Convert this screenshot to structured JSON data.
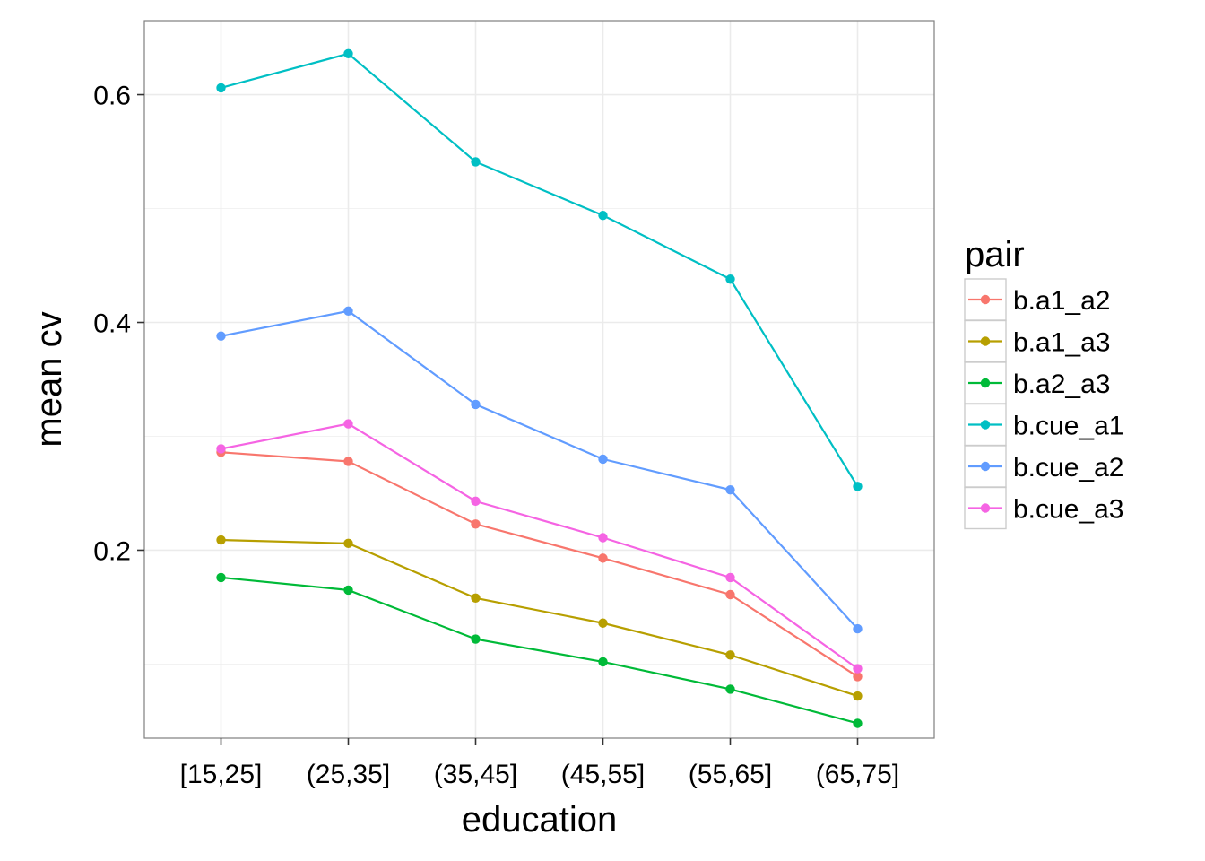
{
  "chart_data": {
    "type": "line",
    "title": "",
    "xlabel": "education",
    "ylabel": "mean cv",
    "categories": [
      "[15,25]",
      "(25,35]",
      "(35,45]",
      "(45,55]",
      "(55,65]",
      "(65,75]"
    ],
    "ylim": [
      0.035,
      0.665
    ],
    "yticks": [
      0.2,
      0.4,
      0.6
    ],
    "ytick_labels": [
      "0.2",
      "0.4",
      "0.6"
    ],
    "grid": true,
    "legend": {
      "title": "pair",
      "position": "right"
    },
    "series": [
      {
        "name": "b.a1_a2",
        "color": "#F8766D",
        "values": [
          0.286,
          0.278,
          0.223,
          0.193,
          0.161,
          0.089
        ]
      },
      {
        "name": "b.a1_a3",
        "color": "#B79F00",
        "values": [
          0.209,
          0.206,
          0.158,
          0.136,
          0.108,
          0.072
        ]
      },
      {
        "name": "b.a2_a3",
        "color": "#00BA38",
        "values": [
          0.176,
          0.165,
          0.122,
          0.102,
          0.078,
          0.048
        ]
      },
      {
        "name": "b.cue_a1",
        "color": "#00BFC4",
        "values": [
          0.606,
          0.636,
          0.541,
          0.494,
          0.438,
          0.256
        ]
      },
      {
        "name": "b.cue_a2",
        "color": "#619CFF",
        "values": [
          0.388,
          0.41,
          0.328,
          0.28,
          0.253,
          0.131
        ]
      },
      {
        "name": "b.cue_a3",
        "color": "#F564E3",
        "values": [
          0.289,
          0.311,
          0.243,
          0.211,
          0.176,
          0.096
        ]
      }
    ]
  }
}
